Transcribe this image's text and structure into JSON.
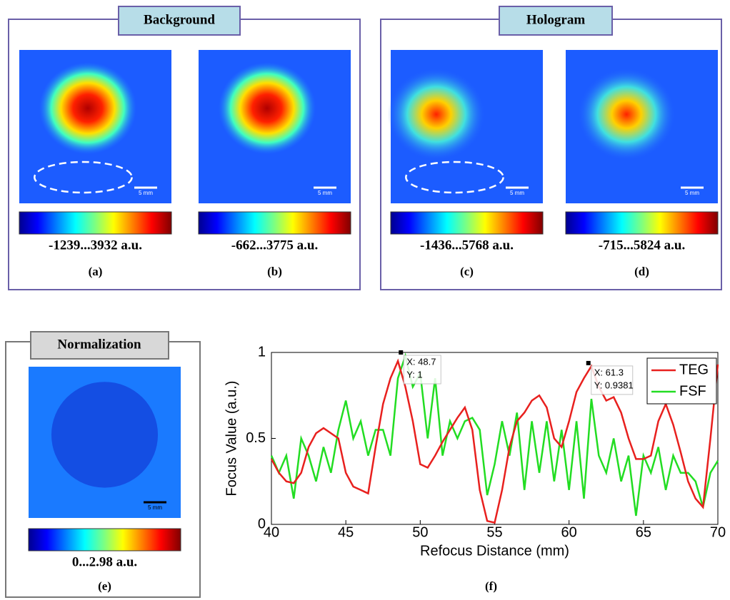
{
  "panels": [
    {
      "title": "Background"
    },
    {
      "title": "Hologram"
    },
    {
      "title": "Normalization"
    }
  ],
  "images": [
    {
      "range": "-1239...3932 a.u.",
      "label": "(a)",
      "scale": "5 mm"
    },
    {
      "range": "-662...3775 a.u.",
      "label": "(b)",
      "scale": "5 mm"
    },
    {
      "range": "-1436...5768 a.u.",
      "label": "(c)",
      "scale": "5 mm"
    },
    {
      "range": "-715...5824 a.u.",
      "label": "(d)",
      "scale": "5 mm"
    },
    {
      "range": "0...2.98 a.u.",
      "label": "(e)",
      "scale": "5 mm"
    }
  ],
  "chart_data": {
    "type": "line",
    "label": "(f)",
    "xlabel": "Refocus Distance (mm)",
    "ylabel": "Focus Value (a.u.)",
    "x": [
      40,
      40.5,
      41,
      41.5,
      42,
      42.5,
      43,
      43.5,
      44,
      44.5,
      45,
      45.5,
      46,
      46.5,
      47,
      47.5,
      48,
      48.5,
      49,
      49.5,
      50,
      50.5,
      51,
      51.5,
      52,
      52.5,
      53,
      53.5,
      54,
      54.5,
      55,
      55.5,
      56,
      56.5,
      57,
      57.5,
      58,
      58.5,
      59,
      59.5,
      60,
      60.5,
      61,
      61.5,
      62,
      62.5,
      63,
      63.5,
      64,
      64.5,
      65,
      65.5,
      66,
      66.5,
      67,
      67.5,
      68,
      68.5,
      69,
      69.5,
      70
    ],
    "series": [
      {
        "name": "TEG",
        "color": "#e8201e",
        "values": [
          0.38,
          0.3,
          0.25,
          0.24,
          0.3,
          0.45,
          0.53,
          0.56,
          0.53,
          0.5,
          0.3,
          0.22,
          0.2,
          0.18,
          0.45,
          0.7,
          0.85,
          0.95,
          0.8,
          0.6,
          0.35,
          0.33,
          0.4,
          0.48,
          0.55,
          0.62,
          0.68,
          0.55,
          0.2,
          0.02,
          0.01,
          0.2,
          0.45,
          0.6,
          0.65,
          0.72,
          0.75,
          0.68,
          0.5,
          0.45,
          0.6,
          0.77,
          0.85,
          0.92,
          0.8,
          0.72,
          0.74,
          0.65,
          0.5,
          0.38,
          0.38,
          0.4,
          0.6,
          0.7,
          0.58,
          0.42,
          0.25,
          0.15,
          0.1,
          0.5,
          0.93
        ]
      },
      {
        "name": "FSF",
        "color": "#22dd22",
        "values": [
          0.4,
          0.3,
          0.4,
          0.15,
          0.5,
          0.4,
          0.25,
          0.45,
          0.3,
          0.55,
          0.72,
          0.5,
          0.6,
          0.4,
          0.55,
          0.55,
          0.4,
          0.85,
          0.98,
          0.8,
          0.88,
          0.5,
          0.85,
          0.4,
          0.6,
          0.5,
          0.6,
          0.62,
          0.55,
          0.17,
          0.35,
          0.6,
          0.4,
          0.65,
          0.2,
          0.6,
          0.3,
          0.6,
          0.25,
          0.55,
          0.2,
          0.6,
          0.15,
          0.73,
          0.4,
          0.3,
          0.5,
          0.25,
          0.4,
          0.05,
          0.4,
          0.3,
          0.45,
          0.2,
          0.4,
          0.3,
          0.3,
          0.25,
          0.1,
          0.3,
          0.37
        ]
      }
    ],
    "xlim": [
      40,
      70
    ],
    "ylim": [
      0,
      1
    ],
    "xticks": [
      40,
      45,
      50,
      55,
      60,
      65,
      70
    ],
    "yticks": [
      0,
      0.5,
      1
    ],
    "annotations": [
      {
        "x": 48.7,
        "y": 1,
        "text_x": "X: 48.7",
        "text_y": "Y: 1"
      },
      {
        "x": 61.3,
        "y": 0.9381,
        "text_x": "X: 61.3",
        "text_y": "Y: 0.9381"
      }
    ],
    "legend": "upper right"
  }
}
